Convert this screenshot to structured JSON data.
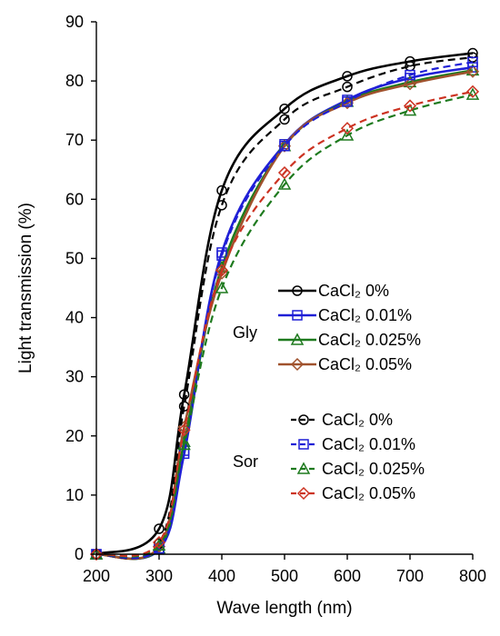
{
  "chart_data": {
    "type": "line",
    "xlabel": "Wave length (nm)",
    "ylabel": "Light transmission (%)",
    "xlim": [
      200,
      800
    ],
    "ylim": [
      0,
      90
    ],
    "xticks": [
      200,
      300,
      400,
      500,
      600,
      700,
      800
    ],
    "yticks": [
      0,
      10,
      20,
      30,
      40,
      50,
      60,
      70,
      80,
      90
    ],
    "grid": false,
    "legend_position": "lower-right",
    "x": [
      200,
      300,
      340,
      400,
      500,
      600,
      700,
      800
    ],
    "groups": [
      {
        "label": "Gly",
        "line_style": "solid"
      },
      {
        "label": "Sor",
        "line_style": "dashed"
      }
    ],
    "series": [
      {
        "name": "CaCl₂  0%",
        "group": "Gly",
        "color": "#000000",
        "marker": "circle",
        "dash": "solid",
        "values": [
          0,
          4.3,
          27.0,
          61.5,
          75.3,
          80.8,
          83.3,
          84.7
        ]
      },
      {
        "name": "CaCl₂  0.01%",
        "group": "Gly",
        "color": "#1f1fd6",
        "marker": "square",
        "dash": "solid",
        "values": [
          0,
          0.8,
          17.0,
          51.0,
          69.3,
          76.8,
          80.5,
          82.3
        ]
      },
      {
        "name": "CaCl₂  0.025%",
        "group": "Gly",
        "color": "#1e7a1e",
        "marker": "triangle",
        "dash": "solid",
        "values": [
          0,
          1.0,
          19.0,
          48.5,
          69.0,
          76.5,
          79.8,
          81.8
        ]
      },
      {
        "name": "CaCl₂  0.05%",
        "group": "Gly",
        "color": "#a0522d",
        "marker": "diamond",
        "dash": "solid",
        "values": [
          0,
          1.3,
          21.5,
          47.5,
          69.0,
          76.3,
          79.5,
          81.6
        ]
      },
      {
        "name": "CaCl₂  0%",
        "group": "Sor",
        "color": "#000000",
        "marker": "circle",
        "dash": "dashed",
        "values": [
          0,
          1.8,
          25.0,
          59.0,
          73.5,
          79.0,
          82.5,
          84.0
        ]
      },
      {
        "name": "CaCl₂  0.01%",
        "group": "Sor",
        "color": "#1f1fd6",
        "marker": "square",
        "dash": "dashed",
        "values": [
          0,
          1.0,
          17.5,
          50.5,
          69.0,
          76.5,
          81.0,
          83.2
        ]
      },
      {
        "name": "CaCl₂  0.025%",
        "group": "Sor",
        "color": "#1e7a1e",
        "marker": "triangle",
        "dash": "dashed",
        "values": [
          0,
          1.5,
          18.5,
          45.0,
          62.5,
          70.8,
          75.0,
          77.7
        ]
      },
      {
        "name": "CaCl₂  0.05%",
        "group": "Sor",
        "color": "#cc3322",
        "marker": "diamond",
        "dash": "dashed",
        "values": [
          0,
          2.0,
          21.0,
          48.0,
          64.5,
          72.0,
          75.8,
          78.2
        ]
      }
    ]
  }
}
